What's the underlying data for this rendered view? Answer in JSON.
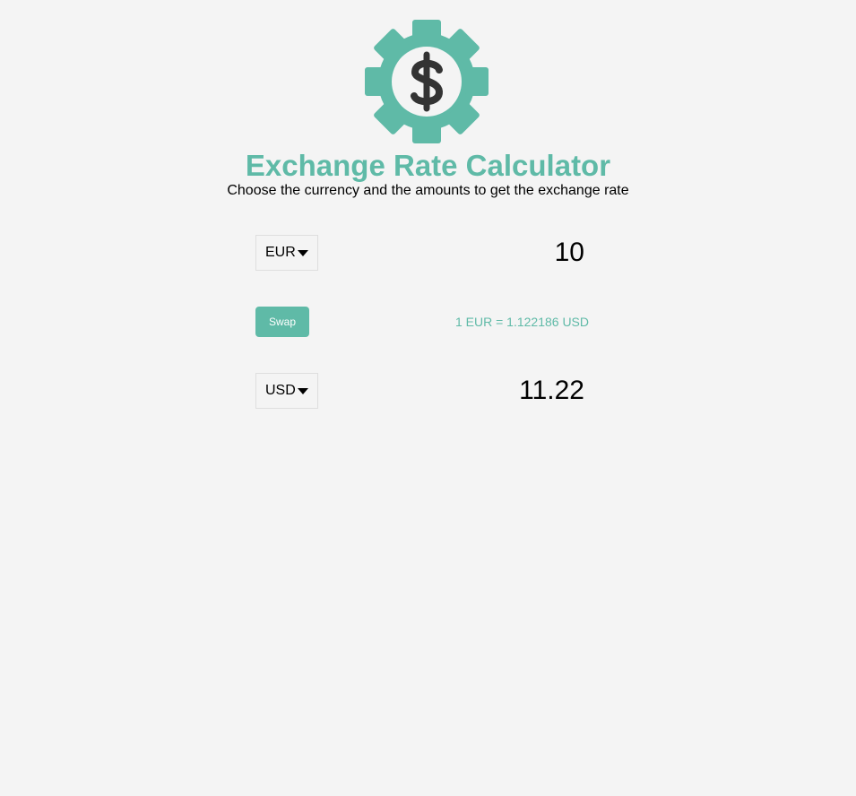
{
  "header": {
    "logo_icon": "gear-dollar-icon",
    "title": "Exchange Rate Calculator",
    "subtitle": "Choose the currency and the amounts to get the exchange rate"
  },
  "currency_one": {
    "selected": "EUR",
    "amount": "10"
  },
  "swap": {
    "label": "Swap",
    "rate_text": "1 EUR = 1.122186 USD"
  },
  "currency_two": {
    "selected": "USD",
    "amount": "11.22"
  },
  "colors": {
    "accent": "#5fbaa7",
    "background": "#f4f4f4",
    "icon_dark": "#333333"
  }
}
